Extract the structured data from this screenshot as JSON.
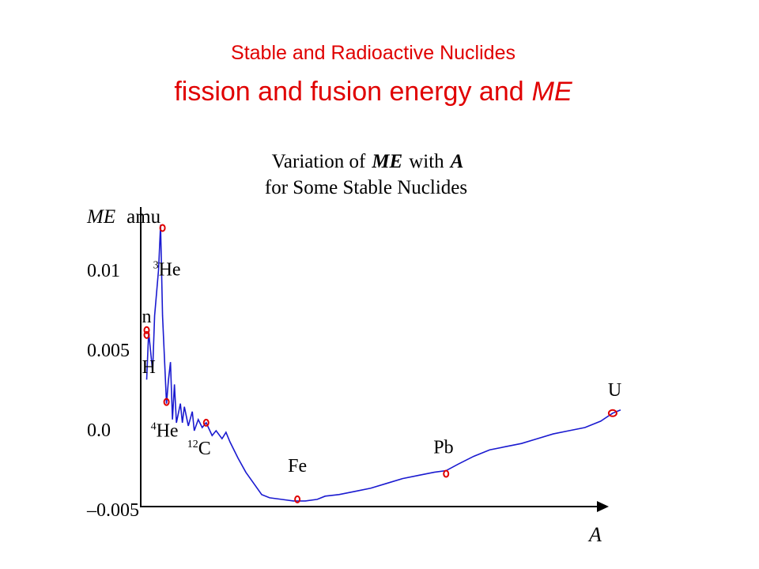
{
  "slide_title": "Stable and Radioactive Nuclides",
  "slide_subtitle": [
    "fission and fusion energy and",
    "ME"
  ],
  "chart_data": {
    "type": "line",
    "title": [
      "Variation of",
      "ME",
      "with",
      "A"
    ],
    "subtitle": "for Some Stable Nuclides",
    "y_label": [
      "ME",
      "amu"
    ],
    "x_label": "A",
    "xlim": [
      0,
      250
    ],
    "ylim": [
      -0.005,
      0.014
    ],
    "yticks": [
      0.01,
      0.005,
      {
        "value": 0,
        "label": "0.0"
      },
      {
        "value": -0.005,
        "label": "–0.005"
      }
    ],
    "series": [
      {
        "color": "#1a1ad0",
        "x": [
          3,
          4,
          6,
          7,
          9,
          10,
          11,
          13,
          14,
          15,
          16,
          17,
          18,
          20,
          21,
          22,
          24,
          26,
          27,
          29,
          31,
          33,
          36,
          38,
          41,
          43,
          45,
          49,
          53,
          57,
          61,
          65,
          71,
          77,
          83,
          89,
          93,
          100,
          108,
          116,
          124,
          132,
          140,
          148,
          154,
          160,
          168,
          176,
          184,
          192,
          200,
          208,
          216,
          224,
          232,
          238,
          242
        ],
        "values": [
          0.0031,
          0.0061,
          0.0036,
          0.0071,
          0.01,
          0.0128,
          0.0071,
          0.0016,
          0.0031,
          0.0042,
          0.0006,
          0.0028,
          0.0004,
          0.0016,
          0.0004,
          0.0014,
          0.0002,
          0.0011,
          -0.0001,
          0.0006,
          0.0001,
          0.0004,
          -0.0004,
          -0.0001,
          -0.0006,
          -0.0002,
          -0.0008,
          -0.0018,
          -0.0027,
          -0.0034,
          -0.0041,
          -0.0043,
          -0.0044,
          -0.0045,
          -0.0045,
          -0.0044,
          -0.0042,
          -0.0041,
          -0.0039,
          -0.0037,
          -0.0034,
          -0.0031,
          -0.0029,
          -0.0027,
          -0.0026,
          -0.0022,
          -0.0017,
          -0.0013,
          -0.0011,
          -0.0009,
          -0.0006,
          -0.0003,
          -0.0001,
          0.0001,
          0.0005,
          0.001,
          0.0012
        ]
      }
    ],
    "marker_color": "#e00000",
    "points": [
      {
        "symbol": "n",
        "x": 3,
        "y": 0.0062
      },
      {
        "symbol": "H",
        "x": 3,
        "y": 0.0059
      },
      {
        "mass": "3",
        "symbol": "He",
        "x": 11,
        "y": 0.0126
      },
      {
        "mass": "4",
        "symbol": "He",
        "x": 13,
        "y": 0.0017
      },
      {
        "mass": "12",
        "symbol": "C",
        "x": 33,
        "y": 0.0004
      },
      {
        "symbol": "Fe",
        "x": 79,
        "y": -0.0044
      },
      {
        "symbol": "Pb",
        "x": 154,
        "y": -0.0028
      },
      {
        "symbol": "U",
        "x": 238,
        "y": 0.001
      }
    ]
  }
}
